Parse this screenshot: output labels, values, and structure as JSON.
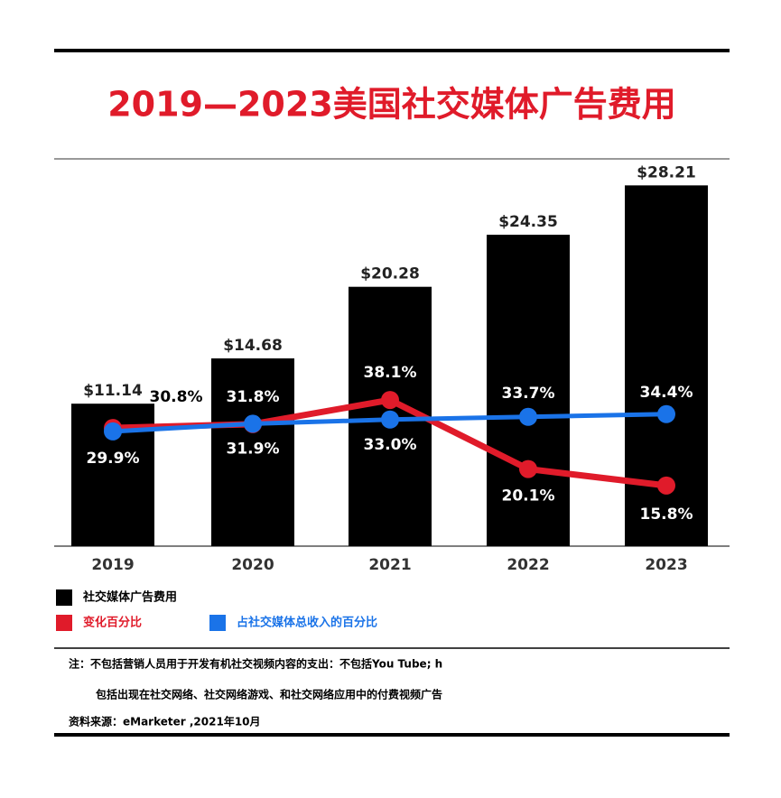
{
  "chart_data": {
    "type": "bar",
    "title": "2019—2023美国社交媒体广告费用",
    "categories": [
      "2019",
      "2020",
      "2021",
      "2022",
      "2023"
    ],
    "ylim": [
      0,
      30
    ],
    "y2lim": [
      0,
      100
    ],
    "series": [
      {
        "name": "社交媒体广告费用",
        "color": "#000000",
        "type": "bar",
        "values": [
          11.14,
          14.68,
          20.28,
          24.35,
          28.21
        ],
        "value_labels": [
          "$11.14",
          "$14.68",
          "$20.28",
          "$24.35",
          "$28.21"
        ]
      },
      {
        "name": "变化百分比",
        "color": "#e01b2a",
        "type": "line",
        "axis": "y2",
        "values": [
          30.8,
          31.8,
          38.1,
          20.1,
          15.8
        ],
        "value_labels": [
          "30.8%",
          "31.8%",
          "38.1%",
          "20.1%",
          "15.8%"
        ]
      },
      {
        "name": "占社交媒体总收入的百分比",
        "color": "#1a73e8",
        "type": "line",
        "axis": "y2",
        "values": [
          29.9,
          31.9,
          33.0,
          33.7,
          34.4
        ],
        "value_labels": [
          "29.9%",
          "31.9%",
          "33.0%",
          "33.7%",
          "34.4%"
        ]
      }
    ],
    "notes": [
      "注：不包括营销人员用于开发有机社交视频内容的支出：不包括You Tube; h",
      "包括出现在社交网络、社交网络游戏、和社交网络应用中的付费视频广告",
      "资料来源：eMarketer ,2021年10月"
    ]
  }
}
